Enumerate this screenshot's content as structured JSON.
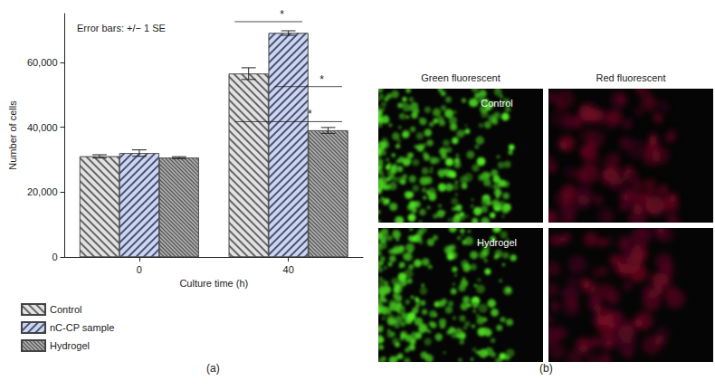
{
  "chart_data": {
    "type": "bar",
    "x_label": "Culture time (h)",
    "y_label": "Number of cells",
    "annotations": [
      "Error bars: +/− 1 SE"
    ],
    "categories": [
      "0",
      "40"
    ],
    "series": [
      {
        "name": "Control",
        "color": "#e2e2e2",
        "values": [
          31000,
          56500
        ],
        "errors": [
          500,
          1800
        ]
      },
      {
        "name": "nC-CP sample",
        "color": "#cdd6ee",
        "values": [
          32000,
          69000
        ],
        "errors": [
          1000,
          700
        ]
      },
      {
        "name": "Hydrogel",
        "color": "#a9a9a9",
        "values": [
          30600,
          39000
        ],
        "errors": [
          300,
          900
        ]
      }
    ],
    "significance": [
      {
        "category": "40",
        "from": "Control",
        "to": "nC-CP sample",
        "y": 72500,
        "label": "*"
      },
      {
        "category": "40",
        "from": "nC-CP sample",
        "to": "Hydrogel",
        "y": 52500,
        "label": "*"
      },
      {
        "category": "40",
        "from": "Control",
        "to": "Hydrogel",
        "y": 41700,
        "label": "*"
      }
    ],
    "ylim": [
      0,
      75000
    ],
    "yticks": [
      0,
      {
        "value": 20000,
        "label": "20,000"
      },
      {
        "value": 40000,
        "label": "40,000"
      },
      {
        "value": 60000,
        "label": "60,000"
      }
    ],
    "grid": false,
    "legend": "lower left"
  },
  "panel_a": {
    "label": "(a)"
  },
  "panel_b": {
    "label": "(b)",
    "columns": [
      "Green fluorescent",
      "Red fluorescent"
    ],
    "rows": [
      "Control",
      "Hydrogel"
    ]
  }
}
